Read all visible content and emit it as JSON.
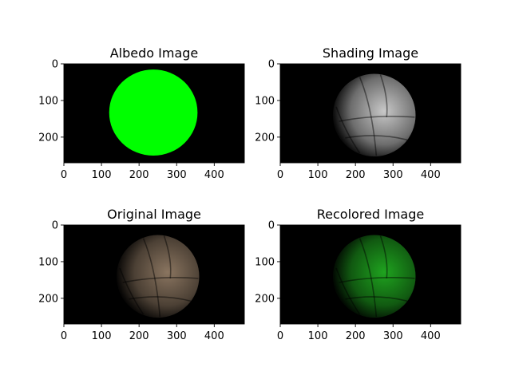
{
  "figure": {
    "background": "#ffffff"
  },
  "chart_data": [
    {
      "type": "image",
      "title": "Albedo Image",
      "xlim": [
        0,
        480
      ],
      "ylim": [
        270,
        0
      ],
      "xticks": [
        0,
        100,
        200,
        300,
        400
      ],
      "yticks": [
        0,
        100,
        200
      ],
      "content": "flat-color-disk",
      "colors": {
        "background": "#000000",
        "sphere": "#00ff00"
      }
    },
    {
      "type": "image",
      "title": "Shading Image",
      "xlim": [
        0,
        480
      ],
      "ylim": [
        270,
        0
      ],
      "xticks": [
        0,
        100,
        200,
        300,
        400
      ],
      "yticks": [
        0,
        100,
        200
      ],
      "content": "shaded-volleyball",
      "colors": {
        "background": "#000000",
        "sphere": "#c8c8c8"
      }
    },
    {
      "type": "image",
      "title": "Original Image",
      "xlim": [
        0,
        480
      ],
      "ylim": [
        270,
        0
      ],
      "xticks": [
        0,
        100,
        200,
        300,
        400
      ],
      "yticks": [
        0,
        100,
        200
      ],
      "content": "shaded-volleyball",
      "colors": {
        "background": "#000000",
        "sphere": "#8a7560"
      }
    },
    {
      "type": "image",
      "title": "Recolored Image",
      "xlim": [
        0,
        480
      ],
      "ylim": [
        270,
        0
      ],
      "xticks": [
        0,
        100,
        200,
        300,
        400
      ],
      "yticks": [
        0,
        100,
        200
      ],
      "content": "shaded-volleyball",
      "colors": {
        "background": "#000000",
        "sphere": "#1fa31f"
      }
    }
  ]
}
